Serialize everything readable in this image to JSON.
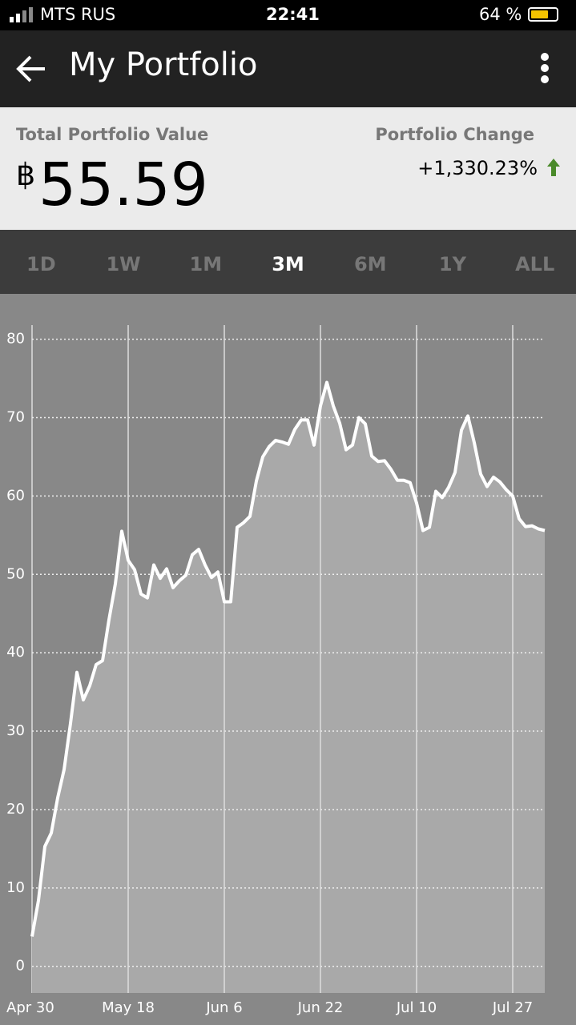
{
  "status_bar": {
    "carrier": "MTS RUS",
    "time": "22:41",
    "battery": "64 %"
  },
  "header": {
    "title": "My Portfolio"
  },
  "summary": {
    "value_label": "Total Portfolio Value",
    "currency": "฿",
    "value": "55.59",
    "change_label": "Portfolio Change",
    "change": "+1,330.23%"
  },
  "tabs": [
    "1D",
    "1W",
    "1M",
    "3M",
    "6M",
    "1Y",
    "ALL"
  ],
  "active_tab": 3,
  "chart_data": {
    "type": "line",
    "categories": [
      "Apr 30",
      null,
      null,
      null,
      null,
      null,
      null,
      null,
      null,
      null,
      null,
      null,
      null,
      null,
      null,
      "May 18",
      null,
      null,
      null,
      null,
      null,
      null,
      null,
      null,
      null,
      null,
      null,
      null,
      null,
      null,
      "Jun 6",
      null,
      null,
      null,
      null,
      null,
      null,
      null,
      null,
      null,
      null,
      null,
      null,
      null,
      null,
      "Jun 22",
      null,
      null,
      null,
      null,
      null,
      null,
      null,
      null,
      null,
      null,
      null,
      null,
      null,
      null,
      "Jul 10",
      null,
      null,
      null,
      null,
      null,
      null,
      null,
      null,
      null,
      null,
      null,
      null,
      null,
      null,
      "Jul 27",
      null,
      null,
      null,
      null,
      null
    ],
    "series": [
      {
        "color": "#ffffff",
        "values": [
          3.8,
          8.4,
          15.3,
          17,
          21.5,
          25.1,
          31,
          37.5,
          34,
          35.8,
          38.5,
          39,
          44.2,
          48.8,
          55.5,
          51.8,
          50.6,
          47.5,
          47,
          51.2,
          49.5,
          50.7,
          48.3,
          49.2,
          49.9,
          52.5,
          53.2,
          51.2,
          49.6,
          50.3,
          46.5,
          46.5,
          56,
          56.6,
          57.4,
          61.9,
          65,
          66.3,
          67.1,
          66.9,
          66.6,
          68.5,
          69.7,
          69.7,
          66.5,
          71.5,
          74.5,
          71.5,
          69.3,
          65.9,
          66.5,
          70,
          69.2,
          65.1,
          64.4,
          64.5,
          63.4,
          62,
          62,
          61.7,
          59.1,
          55.6,
          56,
          60.6,
          59.8,
          61.1,
          63,
          68.4,
          70.2,
          66.8,
          62.8,
          61.2,
          62.4,
          61.8,
          60.8,
          60,
          57.1,
          56.1,
          56.2,
          55.8,
          55.6
        ]
      }
    ],
    "ylim": [
      -3.4,
      81.8
    ],
    "yticks": [
      0,
      10,
      20,
      30,
      40,
      50,
      60,
      70,
      80
    ],
    "grid": true
  }
}
